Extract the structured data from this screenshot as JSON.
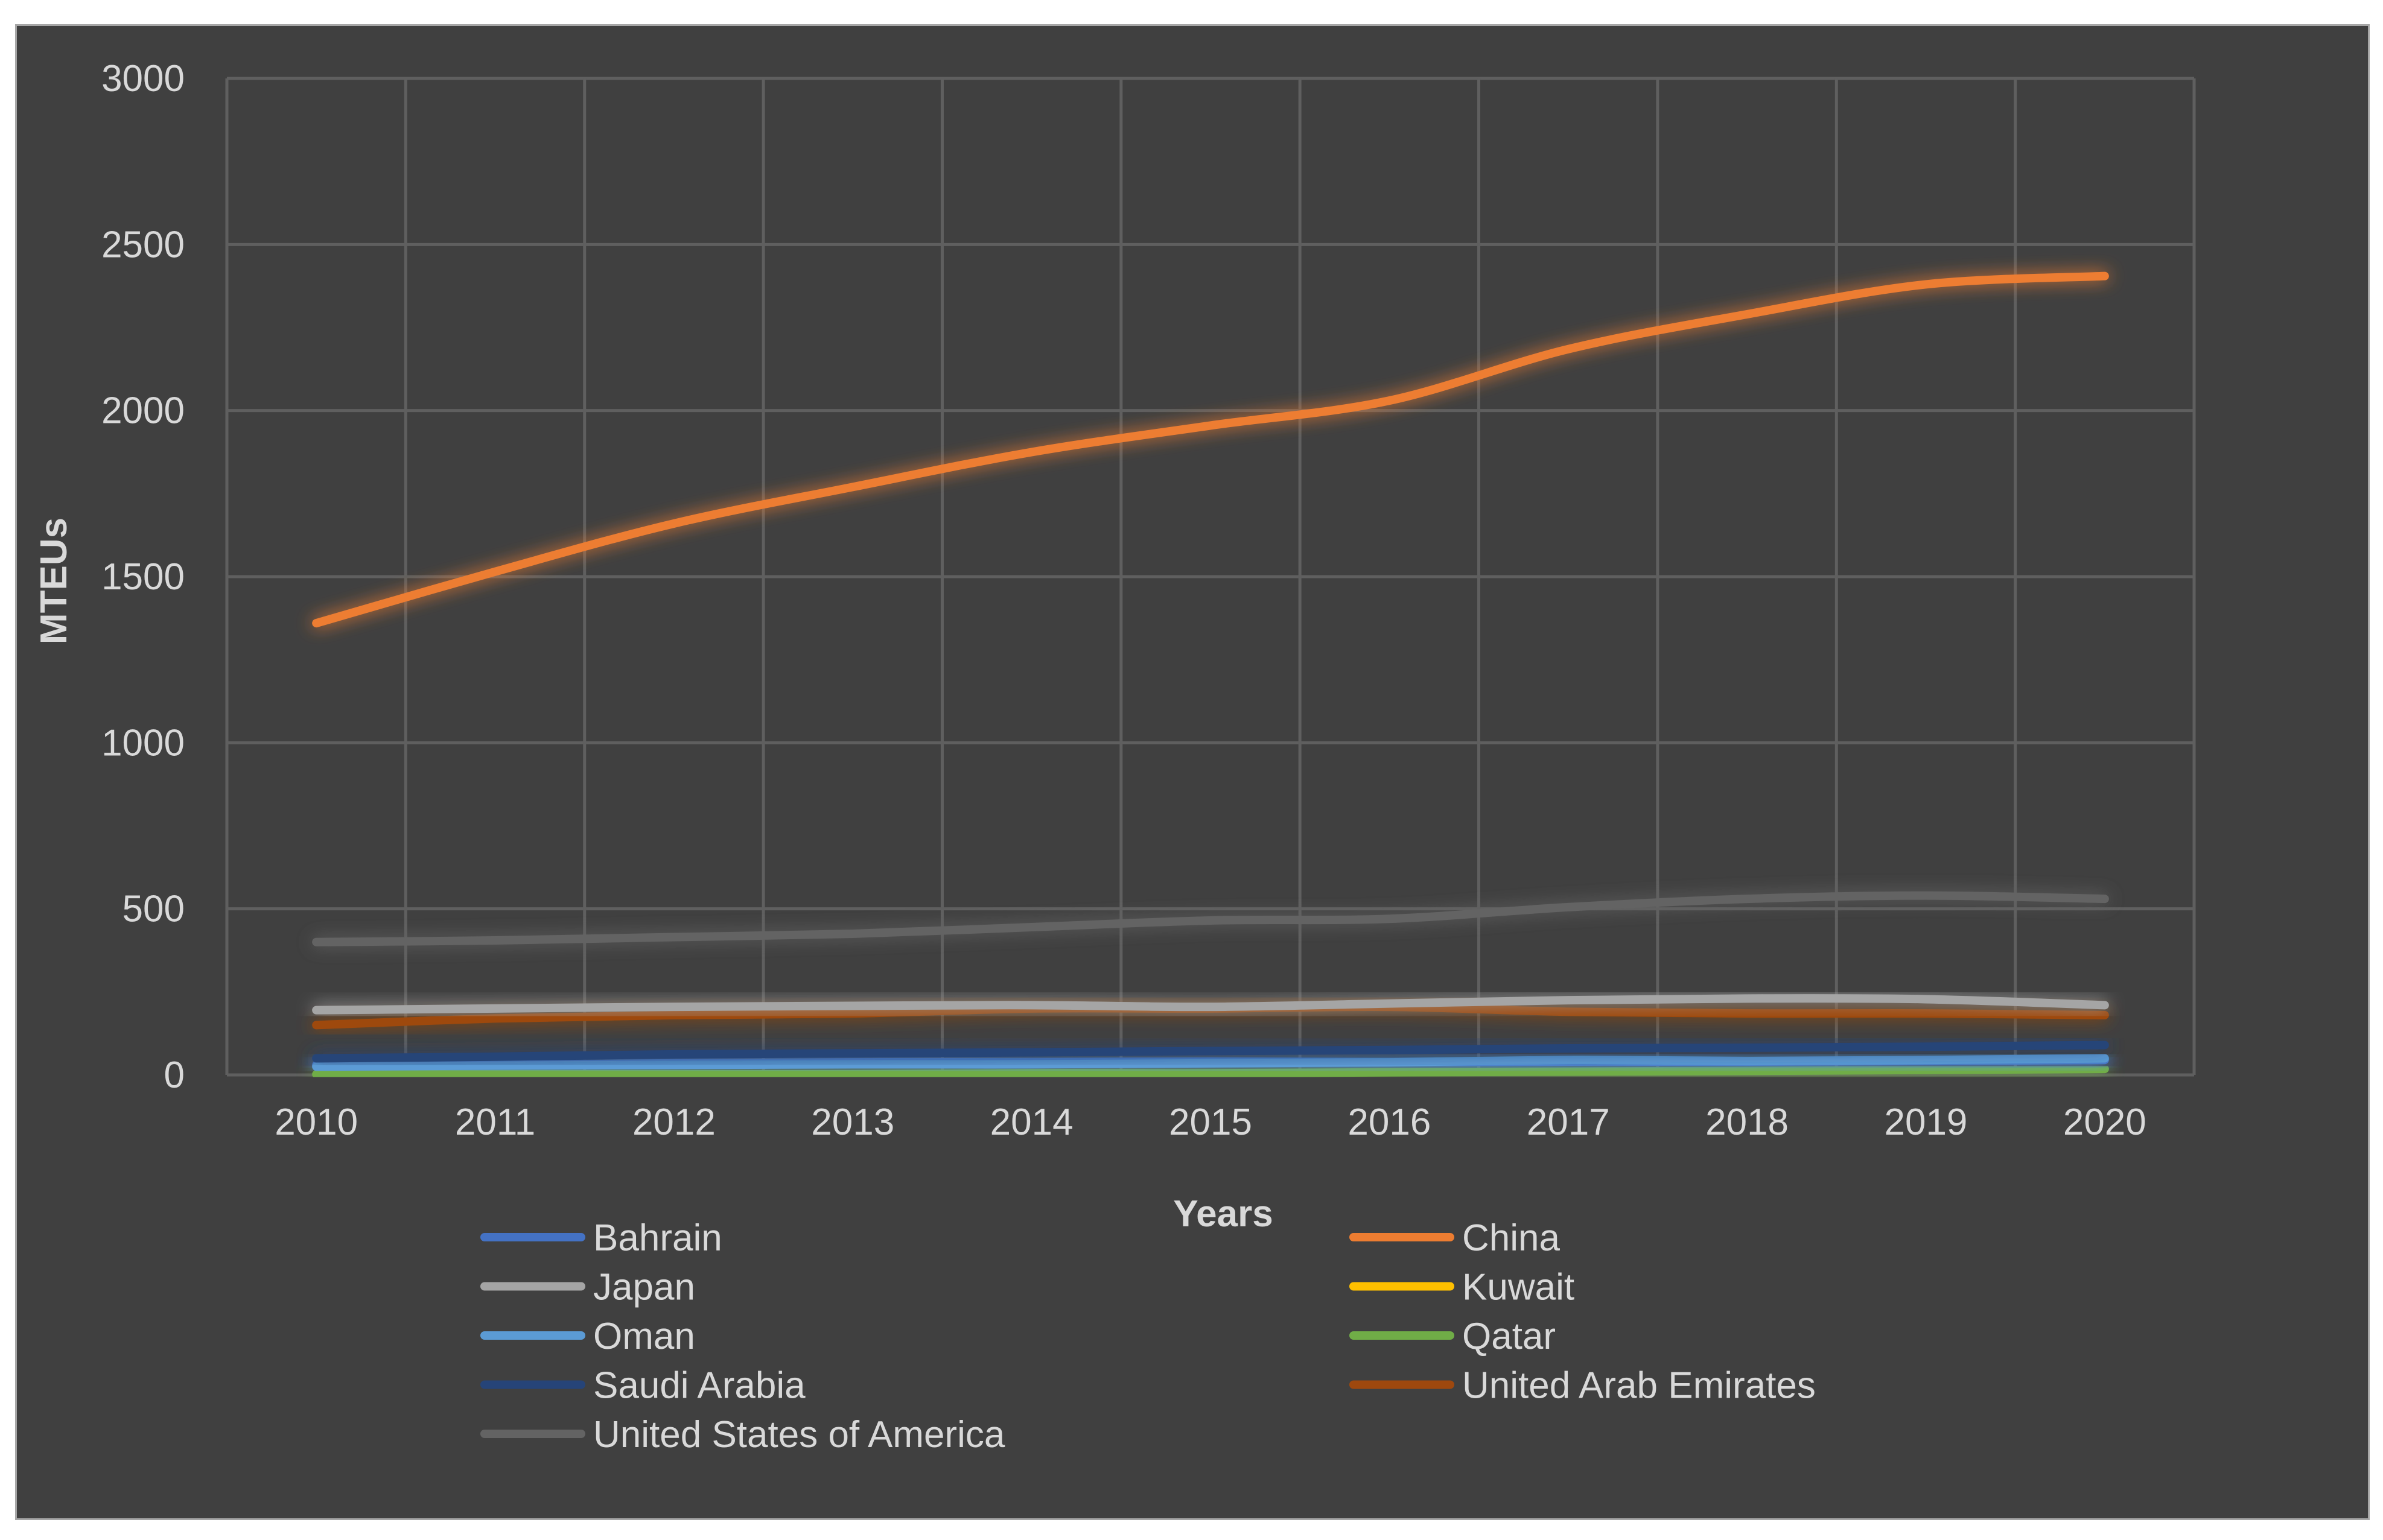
{
  "chart_data": {
    "type": "line",
    "title": "",
    "xlabel": "Years",
    "ylabel": "MTEUs",
    "categories": [
      "2010",
      "2011",
      "2012",
      "2013",
      "2014",
      "2015",
      "2016",
      "2017",
      "2018",
      "2019",
      "2020"
    ],
    "yticks": [
      "0",
      "500",
      "1000",
      "1500",
      "2000",
      "2500",
      "3000"
    ],
    "ylim": [
      0,
      3000
    ],
    "grid": true,
    "legend_position": "bottom",
    "series": [
      {
        "name": "Bahrain",
        "color": "#4472c4",
        "values": [
          30,
          30,
          35,
          38,
          38,
          40,
          38,
          40,
          40,
          42,
          45
        ]
      },
      {
        "name": "China",
        "color": "#ed7d31",
        "values": [
          1360,
          1515,
          1660,
          1770,
          1875,
          1955,
          2030,
          2185,
          2290,
          2380,
          2405
        ]
      },
      {
        "name": "Japan",
        "color": "#a5a5a5",
        "values": [
          195,
          200,
          205,
          208,
          210,
          205,
          215,
          225,
          230,
          228,
          210
        ]
      },
      {
        "name": "Kuwait",
        "color": "#ffc000",
        "values": [
          5,
          5,
          5,
          5,
          5,
          5,
          5,
          5,
          5,
          5,
          5
        ]
      },
      {
        "name": "Oman",
        "color": "#5b9bd5",
        "values": [
          25,
          28,
          30,
          32,
          32,
          35,
          38,
          45,
          42,
          45,
          50
        ]
      },
      {
        "name": "Qatar",
        "color": "#70ad47",
        "values": [
          2,
          2,
          2,
          2,
          5,
          5,
          8,
          10,
          12,
          15,
          18
        ]
      },
      {
        "name": "Saudi Arabia",
        "color": "#264478",
        "values": [
          50,
          55,
          62,
          65,
          68,
          72,
          75,
          80,
          82,
          85,
          90
        ]
      },
      {
        "name": "United Arab Emirates",
        "color": "#9e480e",
        "values": [
          150,
          170,
          180,
          185,
          200,
          200,
          205,
          190,
          185,
          185,
          180
        ]
      },
      {
        "name": "United States of America",
        "color": "#636363",
        "values": [
          400,
          405,
          415,
          425,
          445,
          465,
          470,
          505,
          530,
          540,
          530
        ]
      }
    ]
  }
}
